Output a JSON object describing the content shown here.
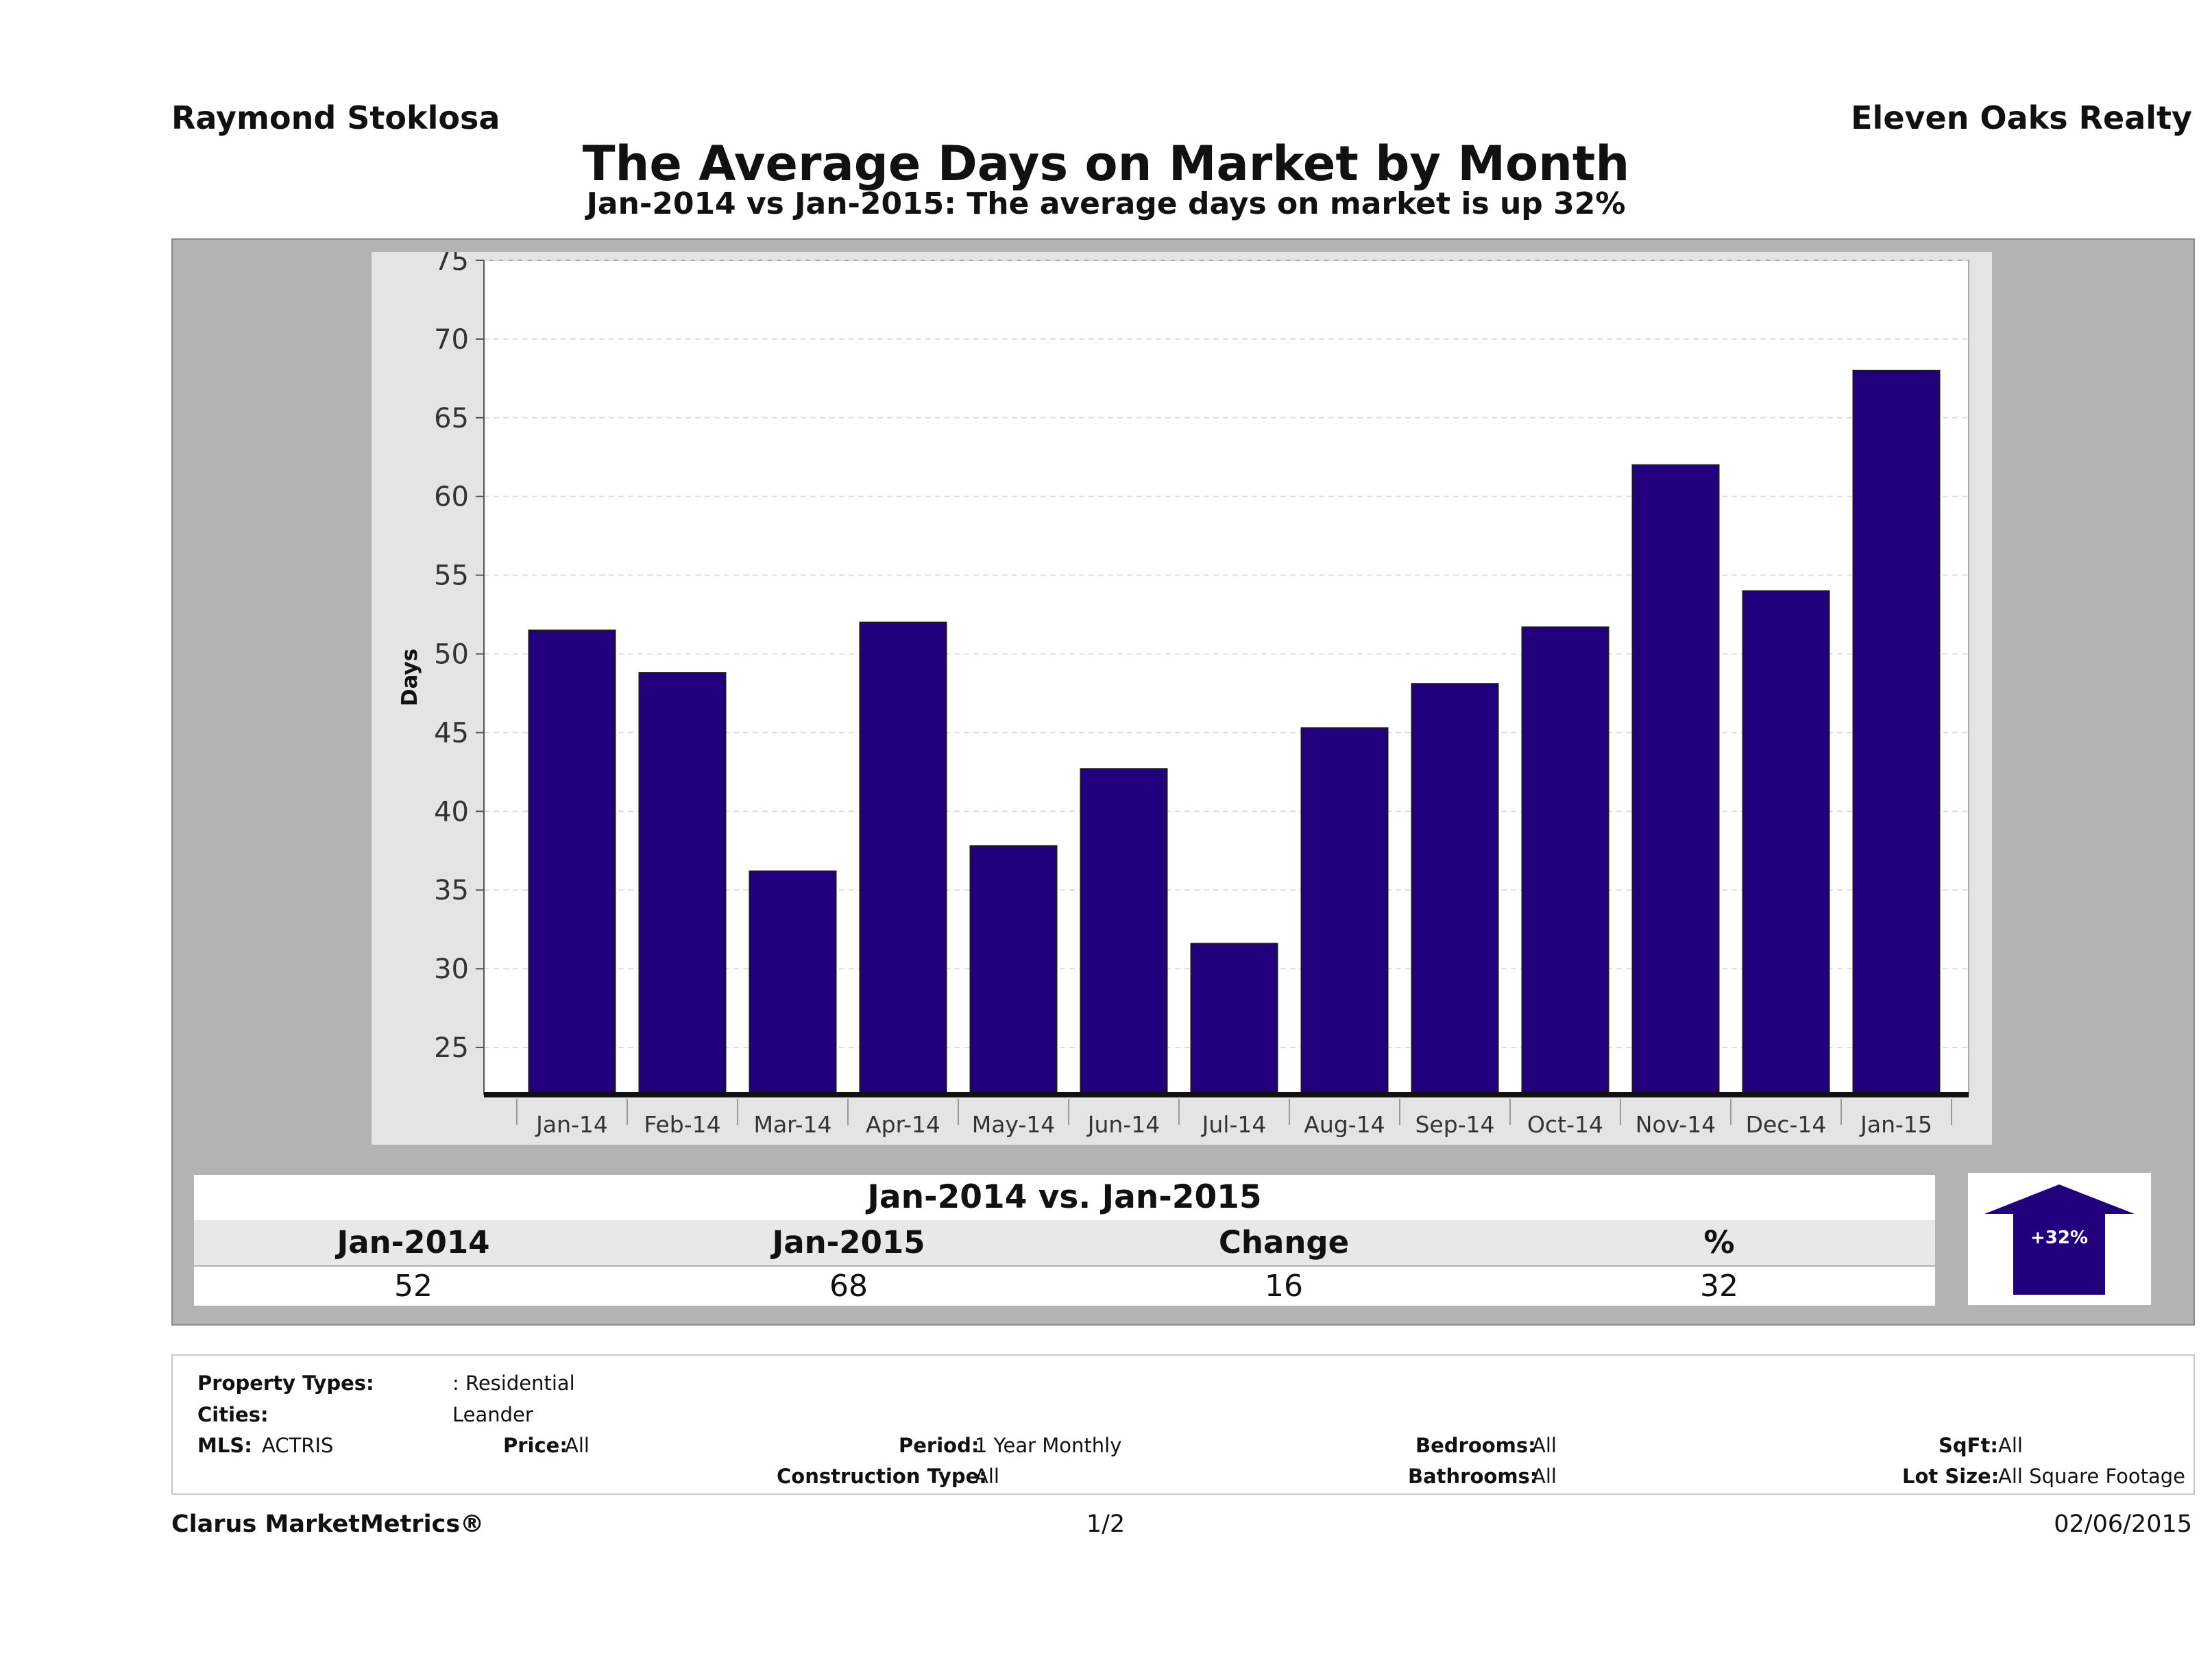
{
  "header": {
    "agent": "Raymond Stoklosa",
    "company": "Eleven Oaks Realty",
    "title": "The Average Days on Market by Month",
    "subtitle": "Jan-2014 vs Jan-2015: The average days on market is up 32%"
  },
  "chart_data": {
    "type": "bar",
    "title": "The Average Days on Market by Month",
    "xlabel": "",
    "ylabel": "Days",
    "categories": [
      "Jan-14",
      "Feb-14",
      "Mar-14",
      "Apr-14",
      "May-14",
      "Jun-14",
      "Jul-14",
      "Aug-14",
      "Sep-14",
      "Oct-14",
      "Nov-14",
      "Dec-14",
      "Jan-15"
    ],
    "values": [
      51.5,
      48.8,
      36.2,
      52,
      37.8,
      42.7,
      31.6,
      45.3,
      48.1,
      51.7,
      62,
      54,
      68
    ],
    "ylim": [
      22,
      75
    ],
    "yticks": [
      25,
      30,
      35,
      40,
      45,
      50,
      55,
      60,
      65,
      70,
      75
    ],
    "grid": true,
    "bar_color": "#22007d"
  },
  "comparison": {
    "heading": "Jan-2014 vs. Jan-2015",
    "labels": [
      "Jan-2014",
      "Jan-2015",
      "Change",
      "%"
    ],
    "values": [
      "52",
      "68",
      "16",
      "32"
    ],
    "badge": "+32%"
  },
  "filters": {
    "property_types_label": "Property Types:",
    "property_types_value": ": Residential",
    "cities_label": "Cities:",
    "cities_value": "Leander",
    "mls_label": "MLS:",
    "mls_value": "ACTRIS",
    "price_label": "Price:",
    "price_value": "All",
    "period_label": "Period:",
    "period_value": "1 Year Monthly",
    "construction_label": "Construction Type:",
    "construction_value": "All",
    "bedrooms_label": "Bedrooms:",
    "bedrooms_value": "All",
    "bathrooms_label": "Bathrooms:",
    "bathrooms_value": "All",
    "sqft_label": "SqFt:",
    "sqft_value": "All",
    "lotsize_label": "Lot Size:",
    "lotsize_value": "All Square Footage"
  },
  "footer": {
    "brand": "Clarus MarketMetrics®",
    "page": "1/2",
    "date": "02/06/2015"
  }
}
